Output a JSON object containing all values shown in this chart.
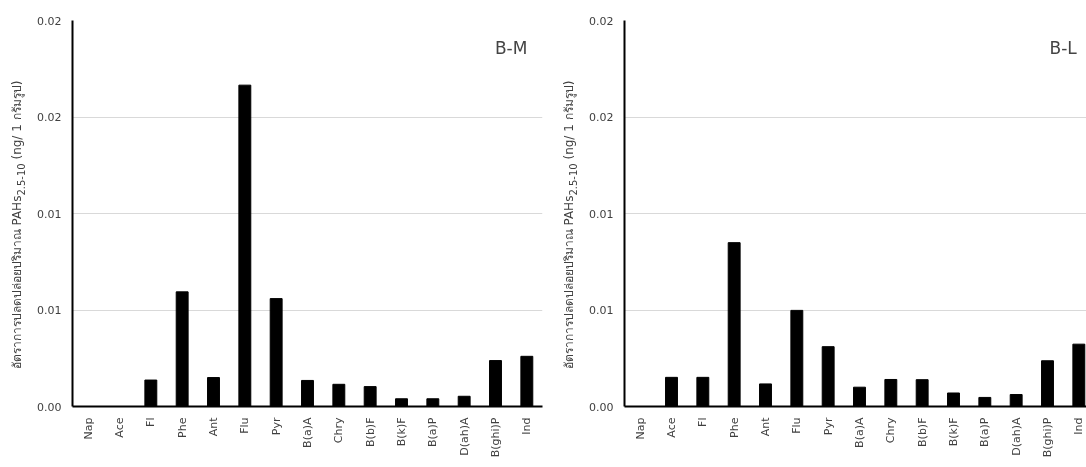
{
  "chart_data": [
    {
      "type": "bar",
      "title": "B-M",
      "ylabel": "อัตราการปลดปล่อยปริมาณ PAHs$_{2.5-10}$ (ng/ 1 กรัมรูป)",
      "categories": [
        "Nap",
        "Ace",
        "Fl",
        "Phe",
        "Ant",
        "Flu",
        "Pyr",
        "B(a)A",
        "Chry",
        "B(b)F",
        "B(k)F",
        "B(a)P",
        "D(ah)A",
        "B(ghi)P",
        "Ind"
      ],
      "values": [
        0,
        0,
        0.00137,
        0.00594,
        0.0015,
        0.01665,
        0.00559,
        0.00135,
        0.00115,
        0.00103,
        0.0004,
        0.0004,
        0.00053,
        0.00238,
        0.0026
      ],
      "color": "#000000",
      "ylim": [
        0,
        0.02
      ],
      "yticks": [
        {
          "value": 0,
          "label": "0.00"
        },
        {
          "value": 0.005,
          "label": "0.01"
        },
        {
          "value": 0.01,
          "label": "0.01"
        },
        {
          "value": 0.015,
          "label": "0.02"
        },
        {
          "value": 0.02,
          "label": "0.02"
        }
      ],
      "grid": "y"
    },
    {
      "type": "bar",
      "title": "B-L",
      "ylabel": "อัตราการปลดปล่อยปริมาณ PAHs$_{2.5-10}$ (ng/ 1 กรัมรูป)",
      "categories": [
        "Nap",
        "Ace",
        "Fl",
        "Phe",
        "Ant",
        "Flu",
        "Pyr",
        "B(a)A",
        "Chry",
        "B(b)F",
        "B(k)F",
        "B(a)P",
        "D(ah)A",
        "B(ghi)P",
        "Ind"
      ],
      "values": [
        0,
        0.00151,
        0.00151,
        0.00849,
        0.00117,
        0.00498,
        0.0031,
        0.001,
        0.0014,
        0.00139,
        0.0007,
        0.00047,
        0.00062,
        0.00237,
        0.00323
      ],
      "color": "#000000",
      "ylim": [
        0,
        0.02
      ],
      "yticks": [
        {
          "value": 0,
          "label": "0.00"
        },
        {
          "value": 0.005,
          "label": "0.01"
        },
        {
          "value": 0.01,
          "label": "0.01"
        },
        {
          "value": 0.015,
          "label": "0.02"
        },
        {
          "value": 0.02,
          "label": "0.02"
        }
      ],
      "grid": "y"
    }
  ]
}
